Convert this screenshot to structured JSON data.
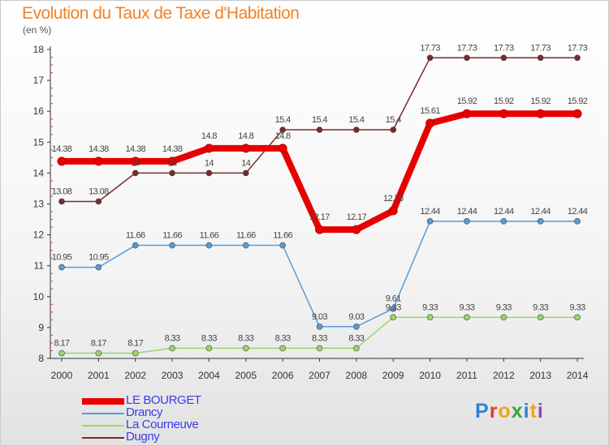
{
  "header": {
    "title": "Evolution du Taux de Taxe d'Habitation",
    "unit": "(en %)"
  },
  "brand": {
    "logo_text": "Proxiti",
    "letters": [
      "P",
      "r",
      "o",
      "x",
      "i",
      "t",
      "i"
    ],
    "letter_colors": [
      "#2f7fd8",
      "#e8392a",
      "#f2a31b",
      "#3aa53a",
      "#2f7fd8",
      "#f2a31b",
      "#8a4ab8"
    ]
  },
  "chart_data": {
    "type": "line",
    "title": "Evolution du Taux de Taxe d'Habitation",
    "ylabel": "(en %)",
    "xlabel": "",
    "x": [
      "2000",
      "2001",
      "2002",
      "2003",
      "2004",
      "2005",
      "2006",
      "2007",
      "2008",
      "2009",
      "2010",
      "2011",
      "2012",
      "2013",
      "2014"
    ],
    "ylim": [
      8,
      18
    ],
    "yticks": [
      "8",
      "9",
      "10",
      "11",
      "12",
      "13",
      "14",
      "15",
      "16",
      "17",
      "18"
    ],
    "grid": false,
    "legend": "bottom-left",
    "series": [
      {
        "name": "LE BOURGET",
        "color": "#e80000",
        "width": 8,
        "marker": 5,
        "values": [
          14.38,
          14.38,
          14.38,
          14.38,
          14.8,
          14.8,
          14.8,
          12.17,
          12.17,
          12.78,
          15.61,
          15.92,
          15.92,
          15.92,
          15.92
        ],
        "labels": [
          "14.38",
          "14.38",
          "14.38",
          "14.38",
          "14.8",
          "14.8",
          "14.8",
          "12.17",
          "12.17",
          "12.78",
          "15.61",
          "15.92",
          "15.92",
          "15.92",
          "15.92"
        ]
      },
      {
        "name": "Drancy",
        "color": "#5a9ad6",
        "width": 1.5,
        "marker": 3.5,
        "values": [
          10.95,
          10.95,
          11.66,
          11.66,
          11.66,
          11.66,
          11.66,
          9.03,
          9.03,
          9.61,
          12.44,
          12.44,
          12.44,
          12.44,
          12.44
        ],
        "labels": [
          "10.95",
          "10.95",
          "11.66",
          "11.66",
          "11.66",
          "11.66",
          "11.66",
          "9.03",
          "9.03",
          "9.61",
          "12.44",
          "12.44",
          "12.44",
          "12.44",
          "12.44"
        ]
      },
      {
        "name": "La Courneuve",
        "color": "#9ad66a",
        "width": 1.5,
        "marker": 3.5,
        "values": [
          8.17,
          8.17,
          8.17,
          8.33,
          8.33,
          8.33,
          8.33,
          8.33,
          8.33,
          9.33,
          9.33,
          9.33,
          9.33,
          9.33,
          9.33
        ],
        "labels": [
          "8.17",
          "8.17",
          "8.17",
          "8.33",
          "8.33",
          "8.33",
          "8.33",
          "8.33",
          "8.33",
          "9.33",
          "9.33",
          "9.33",
          "9.33",
          "9.33",
          "9.33"
        ]
      },
      {
        "name": "Dugny",
        "color": "#7a2a2a",
        "width": 1.5,
        "marker": 3.5,
        "values": [
          13.08,
          13.08,
          14,
          14,
          14,
          14,
          15.4,
          15.4,
          15.4,
          15.4,
          17.73,
          17.73,
          17.73,
          17.73,
          17.73
        ],
        "labels": [
          "13.08",
          "13.08",
          "14",
          "14",
          "14",
          "14",
          "15.4",
          "15.4",
          "15.4",
          "15.4",
          "17.73",
          "17.73",
          "17.73",
          "17.73",
          "17.73"
        ]
      }
    ]
  }
}
